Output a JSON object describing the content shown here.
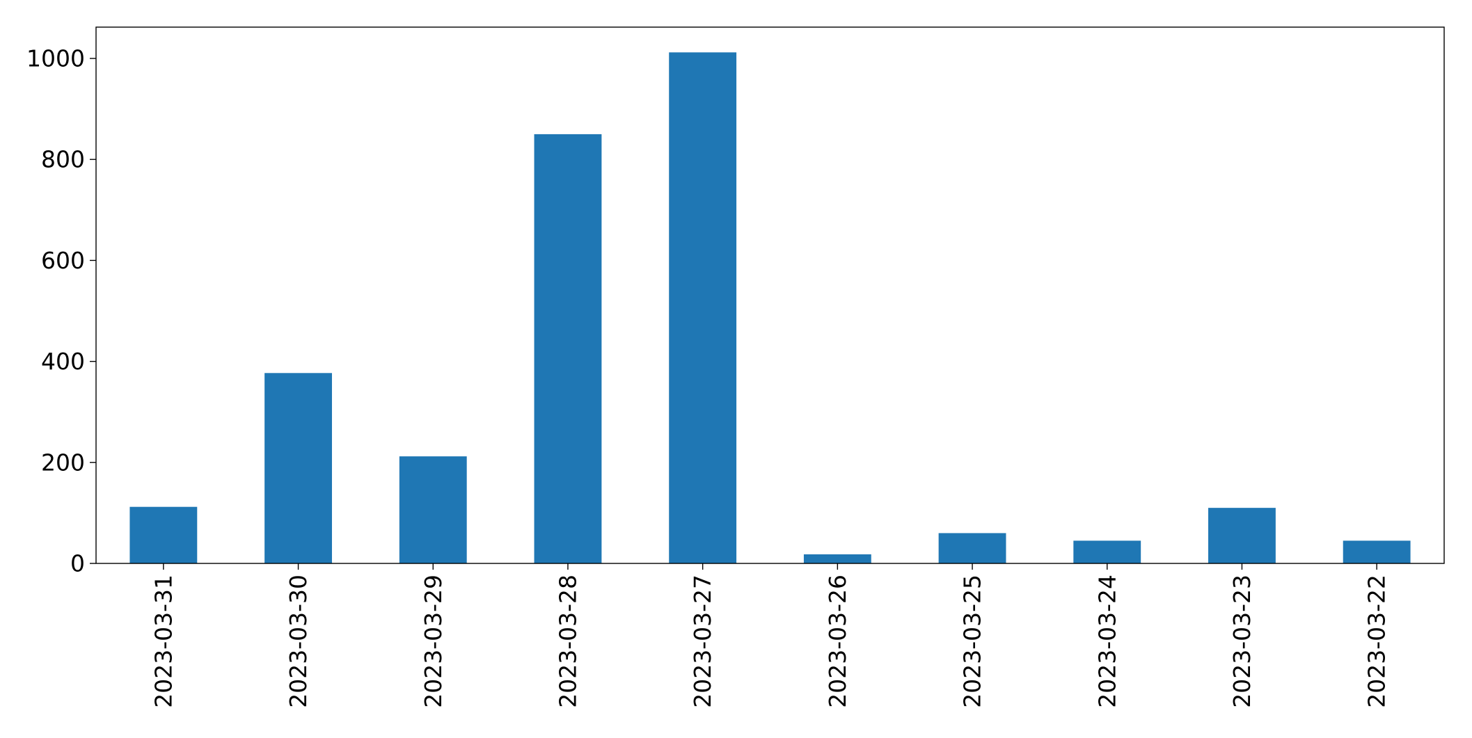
{
  "chart_data": {
    "type": "bar",
    "title": "",
    "xlabel": "",
    "ylabel": "",
    "categories": [
      "2023-03-31",
      "2023-03-30",
      "2023-03-29",
      "2023-03-28",
      "2023-03-27",
      "2023-03-26",
      "2023-03-25",
      "2023-03-24",
      "2023-03-23",
      "2023-03-22"
    ],
    "series": [
      {
        "values": [
          112,
          377,
          212,
          850,
          1012,
          18,
          60,
          45,
          110,
          45
        ],
        "color": "#1f77b4"
      }
    ],
    "ylim": [
      0,
      1062
    ],
    "yticks": [
      0,
      200,
      400,
      600,
      800,
      1000
    ],
    "xtick_rotation": "vertical",
    "grid": false,
    "legend": "none"
  }
}
